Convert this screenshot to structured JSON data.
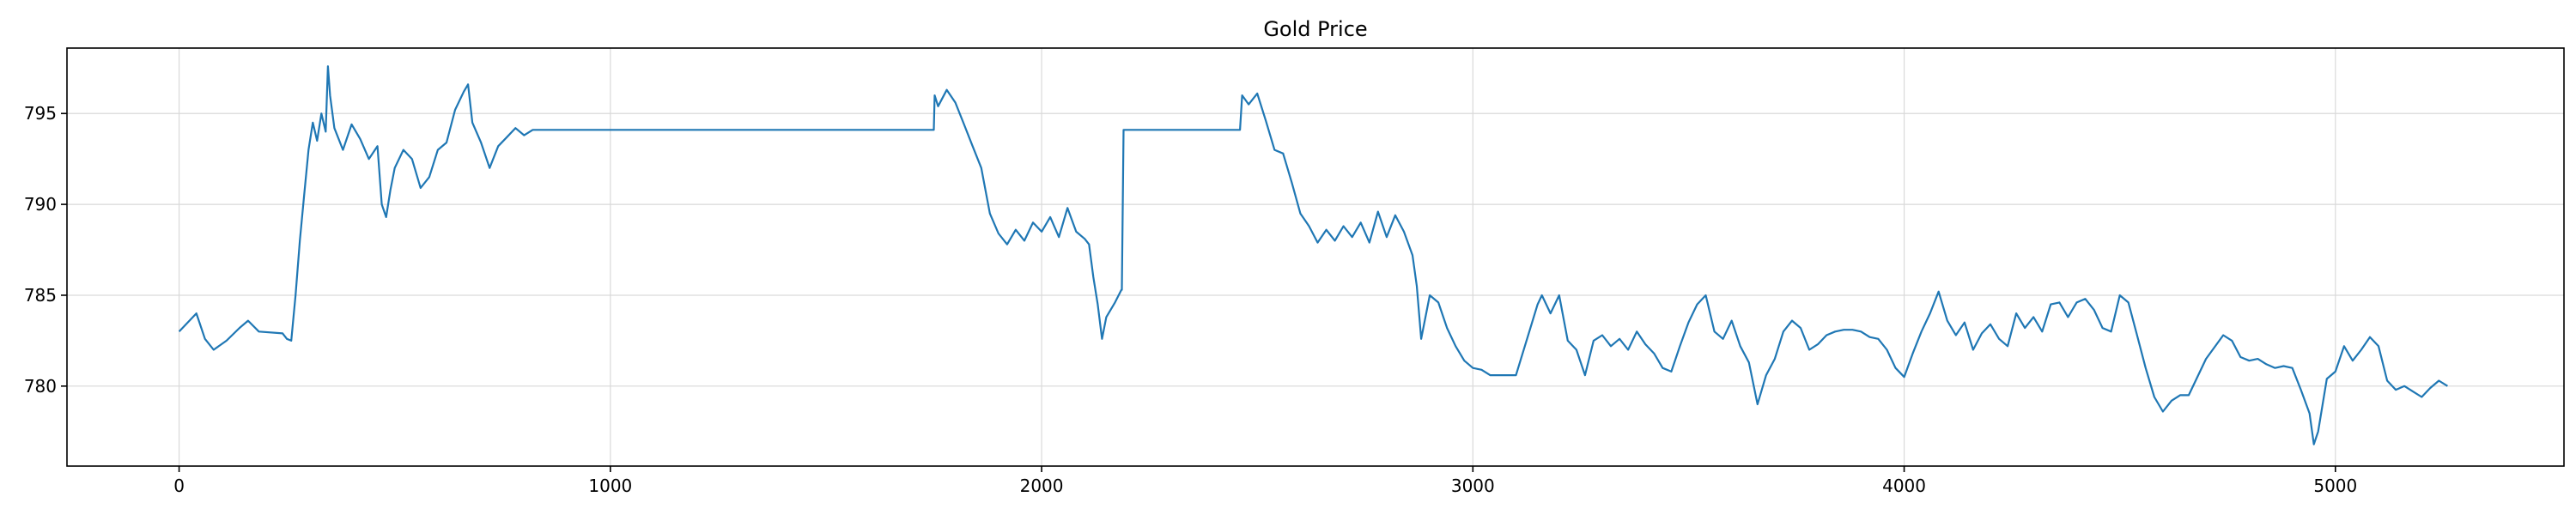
{
  "chart_data": {
    "type": "line",
    "title": "Gold Price",
    "xlabel": "",
    "ylabel": "",
    "xlim": [
      -260,
      5530
    ],
    "ylim": [
      775.6,
      798.6
    ],
    "xticks": [
      0,
      1000,
      2000,
      3000,
      4000,
      5000
    ],
    "yticks": [
      780,
      785,
      790,
      795
    ],
    "grid": true,
    "legend": "none",
    "series": [
      {
        "color": "#1f77b4",
        "x": [
          0,
          20,
          40,
          60,
          80,
          110,
          140,
          160,
          185,
          240,
          250,
          260,
          270,
          280,
          290,
          300,
          310,
          320,
          330,
          340,
          345,
          350,
          360,
          380,
          400,
          420,
          440,
          460,
          470,
          480,
          490,
          500,
          520,
          540,
          560,
          580,
          600,
          620,
          640,
          660,
          670,
          680,
          700,
          720,
          740,
          760,
          780,
          800,
          820,
          830,
          1750,
          1752,
          1760,
          1780,
          1800,
          1820,
          1840,
          1860,
          1880,
          1900,
          1920,
          1940,
          1960,
          1980,
          2000,
          2020,
          2040,
          2060,
          2080,
          2100,
          2110,
          2120,
          2130,
          2140,
          2150,
          2170,
          2185,
          2186,
          2190,
          2460,
          2465,
          2480,
          2500,
          2520,
          2540,
          2560,
          2580,
          2600,
          2620,
          2640,
          2660,
          2680,
          2700,
          2720,
          2740,
          2760,
          2780,
          2800,
          2820,
          2840,
          2860,
          2870,
          2880,
          2900,
          2920,
          2940,
          2960,
          2980,
          3000,
          3020,
          3040,
          3060,
          3090,
          3100,
          3150,
          3160,
          3180,
          3200,
          3220,
          3240,
          3260,
          3280,
          3300,
          3320,
          3340,
          3360,
          3380,
          3400,
          3420,
          3440,
          3460,
          3480,
          3500,
          3520,
          3540,
          3560,
          3580,
          3600,
          3620,
          3640,
          3660,
          3680,
          3700,
          3720,
          3740,
          3760,
          3780,
          3800,
          3820,
          3840,
          3860,
          3880,
          3900,
          3920,
          3940,
          3960,
          3980,
          4000,
          4020,
          4040,
          4060,
          4080,
          4100,
          4120,
          4140,
          4160,
          4180,
          4200,
          4220,
          4240,
          4260,
          4280,
          4300,
          4320,
          4340,
          4360,
          4380,
          4400,
          4420,
          4440,
          4460,
          4480,
          4500,
          4520,
          4540,
          4560,
          4580,
          4600,
          4620,
          4640,
          4660,
          4700,
          4740,
          4760,
          4780,
          4800,
          4820,
          4840,
          4860,
          4880,
          4900,
          4920,
          4940,
          4950,
          4960,
          4980,
          5000,
          5020,
          5040,
          5060,
          5080,
          5100,
          5120,
          5140,
          5160,
          5180,
          5200,
          5220,
          5240,
          5260
        ],
        "values": [
          783.0,
          783.5,
          784.0,
          782.6,
          782.0,
          782.5,
          783.2,
          783.6,
          783.0,
          782.9,
          782.6,
          782.5,
          785.0,
          788.0,
          790.5,
          793.0,
          794.5,
          793.5,
          795.0,
          794.0,
          797.6,
          796.0,
          794.2,
          793.0,
          794.4,
          793.6,
          792.5,
          793.2,
          790.0,
          789.3,
          790.8,
          792.0,
          793.0,
          792.5,
          790.9,
          791.5,
          793.0,
          793.4,
          795.2,
          796.2,
          796.6,
          794.5,
          793.4,
          792.0,
          793.2,
          793.7,
          794.2,
          793.8,
          794.1,
          794.1,
          794.1,
          796.0,
          795.4,
          796.3,
          795.6,
          794.4,
          793.2,
          792.0,
          789.5,
          788.4,
          787.8,
          788.6,
          788.0,
          789.0,
          788.5,
          789.3,
          788.2,
          789.8,
          788.5,
          788.1,
          787.8,
          786.0,
          784.5,
          782.6,
          783.8,
          784.6,
          785.3,
          785.3,
          794.1,
          794.1,
          796.0,
          795.5,
          796.1,
          794.6,
          793.0,
          792.8,
          791.2,
          789.5,
          788.8,
          787.9,
          788.6,
          788.0,
          788.8,
          788.2,
          789.0,
          787.9,
          789.6,
          788.2,
          789.4,
          788.5,
          787.2,
          785.5,
          782.6,
          785.0,
          784.6,
          783.2,
          782.2,
          781.4,
          781.0,
          780.9,
          780.6,
          780.6,
          780.6,
          780.6,
          784.5,
          785.0,
          784.0,
          785.0,
          782.5,
          782.0,
          780.6,
          782.5,
          782.8,
          782.2,
          782.6,
          782.0,
          783.0,
          782.3,
          781.8,
          781.0,
          780.8,
          782.2,
          783.5,
          784.5,
          785.0,
          783.0,
          782.6,
          783.6,
          782.2,
          781.3,
          779.0,
          780.6,
          781.5,
          783.0,
          783.6,
          783.2,
          782.0,
          782.3,
          782.8,
          783.0,
          783.1,
          783.1,
          783.0,
          782.7,
          782.6,
          782.0,
          781.0,
          780.5,
          781.8,
          783.0,
          784.0,
          785.2,
          783.6,
          782.8,
          783.5,
          782.0,
          782.9,
          783.4,
          782.6,
          782.2,
          784.0,
          783.2,
          783.8,
          783.0,
          784.5,
          784.6,
          783.8,
          784.6,
          784.8,
          784.2,
          783.2,
          783.0,
          785.0,
          784.6,
          782.8,
          781.0,
          779.4,
          778.6,
          779.2,
          779.5,
          779.5,
          781.5,
          782.8,
          782.5,
          781.6,
          781.4,
          781.5,
          781.2,
          781.0,
          781.1,
          781.0,
          779.8,
          778.5,
          776.8,
          777.5,
          780.4,
          780.8,
          782.2,
          781.4,
          782.0,
          782.7,
          782.2,
          780.3,
          779.8,
          780.0,
          779.7,
          779.4,
          779.9,
          780.3,
          780.0
        ]
      }
    ]
  }
}
